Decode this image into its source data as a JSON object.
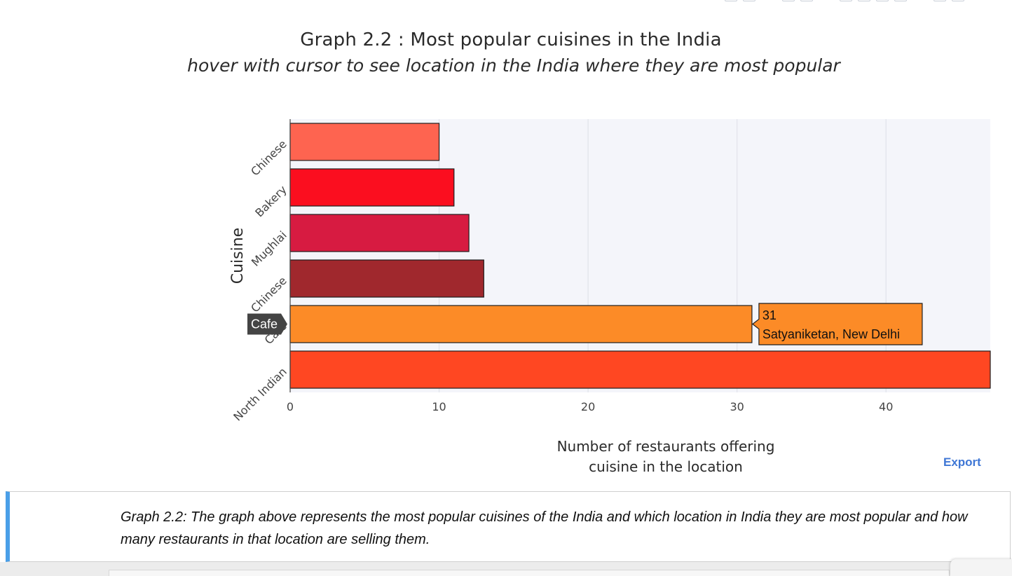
{
  "chart_data": {
    "type": "bar",
    "orientation": "horizontal",
    "title": "Graph 2.2 : Most popular cuisines in the India",
    "subtitle": "hover with cursor to see location in the India where they are most popular",
    "xlabel_lines": [
      "Number of restaurants offering",
      "cuisine in the location"
    ],
    "ylabel": "Cuisine",
    "xlim": [
      0,
      47
    ],
    "x_ticks": [
      0,
      10,
      20,
      30,
      40
    ],
    "grid": true,
    "categories": [
      "Chinese",
      "Bakery",
      "Mughlai",
      "Chinese",
      "Cafe",
      "North Indian"
    ],
    "values": [
      10,
      11,
      12,
      13,
      31,
      47
    ],
    "colors": [
      "#fe6450",
      "#fb0e1f",
      "#d71b41",
      "#a0282d",
      "#fc8b27",
      "#ff4722"
    ],
    "hover": {
      "category_index": 4,
      "category_label": "Cafe",
      "value_text": "31",
      "location_text": "Satyaniketan, New Delhi"
    }
  },
  "export_label": "Export",
  "caption": "Graph 2.2: The graph above represents the most popular cuisines of the India and which location in India they are most popular and how many restaurants in that location are selling them."
}
